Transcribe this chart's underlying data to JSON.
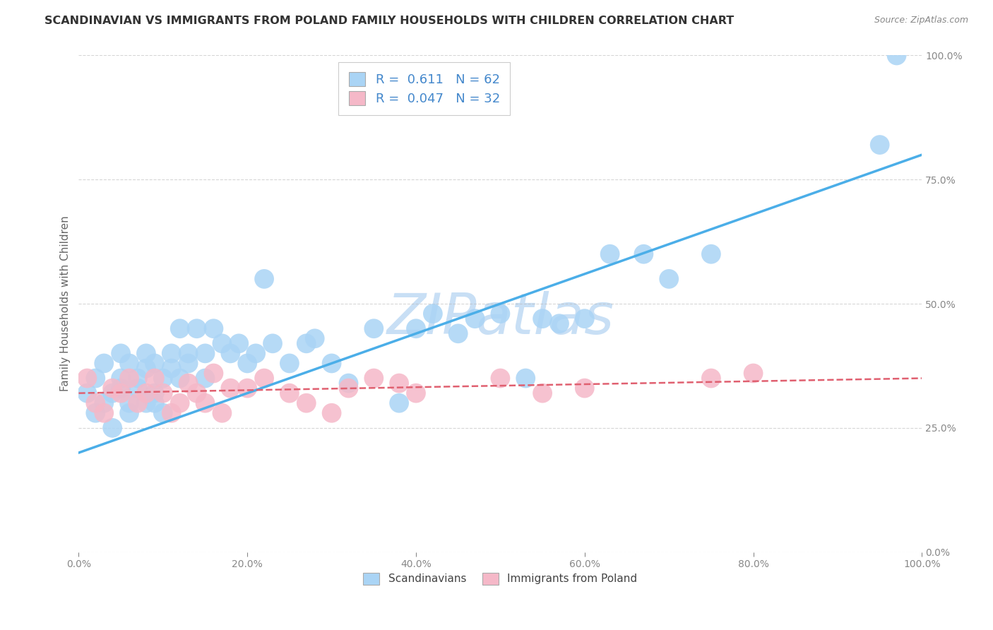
{
  "title": "SCANDINAVIAN VS IMMIGRANTS FROM POLAND FAMILY HOUSEHOLDS WITH CHILDREN CORRELATION CHART",
  "source": "Source: ZipAtlas.com",
  "ylabel": "Family Households with Children",
  "watermark": "ZIPatlas",
  "xlim": [
    0.0,
    100.0
  ],
  "ylim": [
    0.0,
    100.0
  ],
  "x_ticks": [
    0.0,
    20.0,
    40.0,
    60.0,
    80.0,
    100.0
  ],
  "x_tick_labels": [
    "0.0%",
    "20.0%",
    "40.0%",
    "60.0%",
    "80.0%",
    "100.0%"
  ],
  "y_ticks": [
    0.0,
    25.0,
    50.0,
    75.0,
    100.0
  ],
  "y_tick_labels": [
    "0.0%",
    "25.0%",
    "50.0%",
    "75.0%",
    "100.0%"
  ],
  "series": [
    {
      "label": "Scandinavians",
      "color": "#aad4f5",
      "R": 0.611,
      "N": 62,
      "scatter_x": [
        1,
        2,
        2,
        3,
        3,
        4,
        4,
        5,
        5,
        5,
        6,
        6,
        6,
        7,
        7,
        8,
        8,
        8,
        9,
        9,
        9,
        10,
        10,
        11,
        11,
        12,
        12,
        13,
        13,
        14,
        15,
        15,
        16,
        17,
        18,
        19,
        20,
        21,
        22,
        23,
        25,
        27,
        28,
        30,
        32,
        35,
        38,
        40,
        42,
        45,
        47,
        50,
        53,
        55,
        57,
        60,
        63,
        67,
        70,
        75,
        95,
        97
      ],
      "scatter_y": [
        32,
        35,
        28,
        30,
        38,
        25,
        32,
        40,
        33,
        35,
        30,
        28,
        38,
        33,
        35,
        37,
        40,
        30,
        32,
        38,
        30,
        35,
        28,
        37,
        40,
        35,
        45,
        38,
        40,
        45,
        40,
        35,
        45,
        42,
        40,
        42,
        38,
        40,
        55,
        42,
        38,
        42,
        43,
        38,
        34,
        45,
        30,
        45,
        48,
        44,
        47,
        48,
        35,
        47,
        46,
        47,
        60,
        60,
        55,
        60,
        82,
        100
      ],
      "line_x": [
        0,
        100
      ],
      "line_y": [
        20,
        80
      ],
      "line_style": "solid",
      "line_color": "#4baee8",
      "line_width": 2.5
    },
    {
      "label": "Immigrants from Poland",
      "color": "#f5b8c8",
      "R": 0.047,
      "N": 32,
      "scatter_x": [
        1,
        2,
        3,
        4,
        5,
        6,
        7,
        8,
        9,
        10,
        11,
        12,
        13,
        14,
        15,
        16,
        17,
        18,
        20,
        22,
        25,
        27,
        30,
        32,
        35,
        38,
        40,
        50,
        55,
        60,
        75,
        80
      ],
      "scatter_y": [
        35,
        30,
        28,
        33,
        32,
        35,
        30,
        32,
        35,
        32,
        28,
        30,
        34,
        32,
        30,
        36,
        28,
        33,
        33,
        35,
        32,
        30,
        28,
        33,
        35,
        34,
        32,
        35,
        32,
        33,
        35,
        36
      ],
      "line_x": [
        0,
        100
      ],
      "line_y": [
        32,
        35
      ],
      "line_style": "dashed",
      "line_color": "#e06070",
      "line_width": 1.8
    }
  ],
  "legend_color": "#4488cc",
  "title_fontsize": 11.5,
  "axis_label_fontsize": 11,
  "tick_fontsize": 10,
  "watermark_color": "#c8dff5",
  "watermark_fontsize": 58,
  "background_color": "#ffffff",
  "grid_color": "#bbbbbb",
  "grid_linestyle": "--",
  "grid_alpha": 0.6
}
